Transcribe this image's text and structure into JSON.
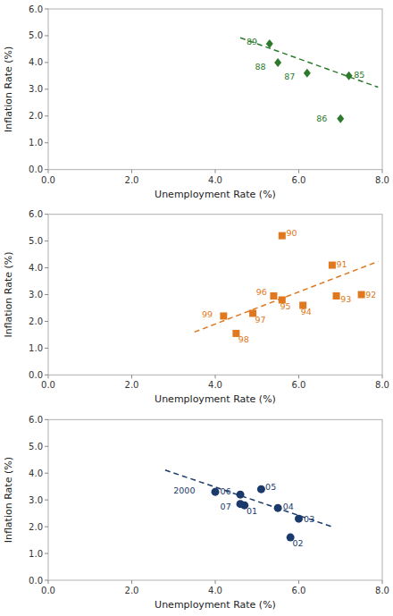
{
  "chart_data": [
    {
      "type": "scatter",
      "xlabel": "Unemployment Rate (%)",
      "ylabel": "Inflation Rate (%)",
      "xlim": [
        0.0,
        8.0
      ],
      "ylim": [
        0.0,
        6.0
      ],
      "xticks": [
        {
          "value": 0.0,
          "label": "0.0"
        },
        {
          "value": 2.0,
          "label": "2.0"
        },
        {
          "value": 4.0,
          "label": "4.0"
        },
        {
          "value": 6.0,
          "label": "6.0"
        },
        {
          "value": 8.0,
          "label": "8.0"
        }
      ],
      "yticks": [
        {
          "value": 0.0,
          "label": "0.0"
        },
        {
          "value": 1.0,
          "label": "1.0"
        },
        {
          "value": 2.0,
          "label": "2.0"
        },
        {
          "value": 3.0,
          "label": "3.0"
        },
        {
          "value": 4.0,
          "label": "4.0"
        },
        {
          "value": 5.0,
          "label": "5.0"
        },
        {
          "value": 6.0,
          "label": "6.0"
        }
      ],
      "grid": false,
      "series": [
        {
          "type": "scatter",
          "color": "#2d7a2d",
          "marker": "diamond",
          "x": [
            5.3,
            5.5,
            6.2,
            7.0,
            7.2
          ],
          "values": [
            4.7,
            4.0,
            3.6,
            1.9,
            3.5
          ],
          "labels": [
            "89",
            "88",
            "87",
            "86",
            "85"
          ]
        },
        {
          "type": "line",
          "color": "#2d7a2d",
          "line_style": "dashed",
          "x": [
            4.6,
            7.9
          ],
          "values": [
            4.924,
            3.076
          ]
        }
      ]
    },
    {
      "type": "scatter",
      "xlabel": "Unemployment Rate (%)",
      "ylabel": "Inflation Rate (%)",
      "xlim": [
        0.0,
        8.0
      ],
      "ylim": [
        0.0,
        6.0
      ],
      "xticks": [
        {
          "value": 0.0,
          "label": "0.0"
        },
        {
          "value": 2.0,
          "label": "2.0"
        },
        {
          "value": 4.0,
          "label": "4.0"
        },
        {
          "value": 6.0,
          "label": "6.0"
        },
        {
          "value": 8.0,
          "label": "8.0"
        }
      ],
      "yticks": [
        {
          "value": 0.0,
          "label": "0.0"
        },
        {
          "value": 1.0,
          "label": "1.0"
        },
        {
          "value": 2.0,
          "label": "2.0"
        },
        {
          "value": 3.0,
          "label": "3.0"
        },
        {
          "value": 4.0,
          "label": "4.0"
        },
        {
          "value": 5.0,
          "label": "5.0"
        },
        {
          "value": 6.0,
          "label": "6.0"
        }
      ],
      "grid": false,
      "series": [
        {
          "type": "scatter",
          "color": "#e07820",
          "marker": "square",
          "x": [
            5.6,
            6.8,
            7.5,
            6.9,
            6.1,
            5.6,
            5.4,
            4.9,
            4.5,
            4.2
          ],
          "values": [
            5.2,
            4.1,
            3.0,
            2.95,
            2.6,
            2.8,
            2.95,
            2.3,
            1.55,
            2.2
          ],
          "labels": [
            "90",
            "91",
            "92",
            "93",
            "94",
            "95",
            "96",
            "97",
            "98",
            "99"
          ]
        },
        {
          "type": "line",
          "color": "#e07820",
          "line_style": "dashed",
          "x": [
            3.5,
            7.9
          ],
          "values": [
            1.6,
            4.24
          ]
        }
      ]
    },
    {
      "type": "scatter",
      "xlabel": "Unemployment Rate (%)",
      "ylabel": "Inflation Rate (%)",
      "xlim": [
        0.0,
        8.0
      ],
      "ylim": [
        0.0,
        6.0
      ],
      "xticks": [
        {
          "value": 0.0,
          "label": "0.0"
        },
        {
          "value": 2.0,
          "label": "2.0"
        },
        {
          "value": 4.0,
          "label": "4.0"
        },
        {
          "value": 6.0,
          "label": "6.0"
        },
        {
          "value": 8.0,
          "label": "8.0"
        }
      ],
      "yticks": [
        {
          "value": 0.0,
          "label": "0.0"
        },
        {
          "value": 1.0,
          "label": "1.0"
        },
        {
          "value": 2.0,
          "label": "2.0"
        },
        {
          "value": 3.0,
          "label": "3.0"
        },
        {
          "value": 4.0,
          "label": "4.0"
        },
        {
          "value": 5.0,
          "label": "5.0"
        },
        {
          "value": 6.0,
          "label": "6.0"
        }
      ],
      "grid": false,
      "series": [
        {
          "type": "scatter",
          "color": "#1a3a6b",
          "marker": "circle",
          "x": [
            4.0,
            4.7,
            5.8,
            6.0,
            5.5,
            5.1,
            4.6,
            4.6
          ],
          "values": [
            3.3,
            2.8,
            1.6,
            2.3,
            2.7,
            3.4,
            3.2,
            2.85
          ],
          "labels": [
            "2000",
            "01",
            "02",
            "03",
            "04",
            "05",
            "06",
            "07"
          ]
        },
        {
          "type": "line",
          "color": "#1a3a6b",
          "line_style": "dashed",
          "x": [
            2.8,
            6.8
          ],
          "values": [
            4.116,
            1.996
          ]
        }
      ]
    }
  ]
}
